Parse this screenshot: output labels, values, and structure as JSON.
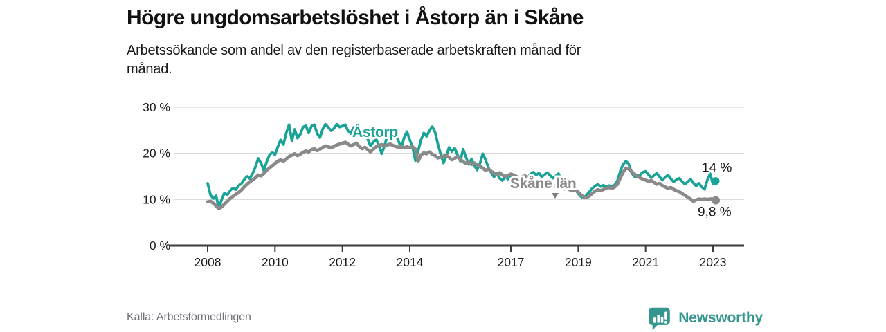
{
  "header": {
    "title": "Högre ungdomsarbetslöshet i Åstorp än i Skåne",
    "subtitle": "Arbetssökande som andel av den registerbaserade arbetskraften månad för månad."
  },
  "footer": {
    "source": "Källa: Arbetsförmedlingen",
    "brand": "Newsworthy"
  },
  "colors": {
    "astorp": "#1aa396",
    "skane": "#8a8a8a",
    "grid": "#dbdbdb",
    "axis": "#3b3b3b",
    "text": "#1a1a1a",
    "logo_teal": "#35968f"
  },
  "chart_data": {
    "type": "line",
    "title": "Högre ungdomsarbetslöshet i Åstorp än i Skåne",
    "subtitle": "Arbetssökande som andel av den registerbaserade arbetskraften månad för månad.",
    "source": "Källa: Arbetsförmedlingen",
    "frequency": "monthly",
    "start": "2008-01",
    "end": "2023-02",
    "ylim": [
      0,
      30
    ],
    "grid": true,
    "legend_position": "inline-labels",
    "y_ticks": [
      {
        "value": 30,
        "label": "30 %"
      },
      {
        "value": 20,
        "label": "20 %"
      },
      {
        "value": 10,
        "label": "10 %"
      },
      {
        "value": 0,
        "label": "0 %"
      }
    ],
    "x_ticks": [
      {
        "year": 2008,
        "label": "2008"
      },
      {
        "year": 2010,
        "label": "2010"
      },
      {
        "year": 2012,
        "label": "2012"
      },
      {
        "year": 2014,
        "label": "2014"
      },
      {
        "year": 2017,
        "label": "2017"
      },
      {
        "year": 2019,
        "label": "2019"
      },
      {
        "year": 2021,
        "label": "2021"
      },
      {
        "year": 2023,
        "label": "2023"
      }
    ],
    "series": [
      {
        "id": "astorp",
        "label": "Åstorp",
        "color": "#1aa396",
        "end_label": "14 %",
        "last_value": 14.0,
        "values": [
          13.5,
          11.0,
          10.2,
          10.8,
          8.0,
          10.0,
          11.4,
          11.0,
          11.9,
          12.5,
          12.1,
          13.0,
          13.4,
          14.3,
          15.0,
          14.5,
          15.6,
          17.0,
          18.9,
          17.9,
          16.3,
          18.1,
          19.6,
          20.2,
          19.7,
          21.4,
          22.9,
          21.9,
          24.4,
          26.2,
          22.7,
          25.2,
          23.3,
          24.1,
          25.7,
          26.0,
          24.4,
          25.9,
          26.2,
          24.3,
          23.4,
          25.3,
          26.3,
          25.6,
          24.9,
          25.4,
          26.3,
          25.7,
          25.9,
          26.2,
          24.9,
          24.3,
          25.6,
          26.0,
          24.5,
          23.5,
          24.3,
          23.1,
          21.6,
          22.4,
          23.1,
          21.7,
          19.9,
          21.6,
          23.9,
          24.6,
          23.3,
          24.1,
          22.6,
          21.2,
          23.4,
          24.7,
          22.9,
          21.3,
          18.4,
          20.6,
          22.9,
          24.4,
          23.7,
          24.9,
          25.8,
          24.6,
          22.0,
          19.8,
          17.9,
          19.4,
          21.3,
          20.4,
          21.1,
          19.7,
          18.3,
          20.9,
          19.2,
          17.6,
          18.8,
          17.3,
          16.4,
          17.8,
          19.9,
          18.6,
          16.9,
          15.8,
          14.9,
          15.7,
          14.6,
          14.1,
          15.0,
          14.4,
          14.8,
          15.3,
          14.2,
          13.6,
          14.6,
          15.2,
          14.7,
          15.5,
          15.9,
          15.3,
          15.7,
          14.9,
          15.4,
          15.8,
          15.2,
          14.6,
          15.1,
          15.6,
          14.3,
          13.4,
          12.9,
          13.3,
          12.6,
          12.1,
          11.3,
          10.6,
          10.3,
          11.0,
          11.7,
          12.4,
          12.9,
          13.3,
          12.8,
          13.1,
          12.7,
          13.0,
          12.8,
          13.2,
          14.1,
          16.2,
          17.6,
          18.3,
          17.7,
          15.8,
          15.0,
          14.9,
          15.3,
          15.9,
          16.1,
          15.4,
          14.7,
          15.2,
          15.7,
          14.9,
          14.2,
          14.8,
          15.3,
          14.5,
          13.8,
          14.3,
          14.6,
          13.9,
          13.3,
          13.8,
          14.4,
          13.6,
          12.9,
          13.5,
          12.7,
          12.2,
          14.2,
          15.6,
          13.4,
          14.0
        ]
      },
      {
        "id": "skane-lan",
        "label": "Skåne län",
        "color": "#8a8a8a",
        "end_label": "9,8 %",
        "last_value": 9.8,
        "values": [
          9.5,
          9.6,
          9.2,
          8.6,
          8.0,
          8.4,
          9.0,
          9.6,
          10.2,
          10.7,
          11.1,
          11.5,
          12.0,
          12.7,
          13.3,
          13.8,
          14.2,
          14.7,
          15.3,
          15.1,
          15.6,
          16.3,
          16.8,
          17.3,
          17.8,
          18.3,
          18.6,
          18.3,
          18.8,
          19.3,
          19.6,
          19.9,
          19.5,
          19.8,
          20.2,
          20.5,
          20.3,
          20.8,
          21.0,
          20.6,
          20.9,
          21.3,
          21.6,
          21.4,
          21.2,
          21.5,
          21.8,
          22.0,
          22.2,
          22.4,
          22.0,
          21.6,
          21.9,
          22.2,
          21.5,
          21.0,
          21.3,
          20.8,
          20.3,
          20.9,
          21.4,
          21.7,
          21.9,
          21.6,
          21.8,
          22.0,
          21.7,
          21.5,
          21.3,
          21.5,
          21.2,
          21.4,
          21.2,
          21.4,
          20.9,
          18.3,
          19.6,
          20.1,
          19.9,
          20.3,
          19.8,
          19.5,
          19.0,
          19.2,
          19.4,
          19.6,
          19.1,
          18.6,
          18.9,
          19.3,
          18.7,
          18.2,
          17.8,
          18.1,
          17.6,
          17.9,
          17.5,
          17.2,
          16.8,
          16.3,
          16.6,
          16.1,
          15.7,
          15.4,
          15.8,
          15.3,
          15.0,
          15.2,
          15.5,
          15.3,
          15.0,
          14.7,
          14.9,
          15.1,
          14.6,
          14.3,
          14.1,
          13.9,
          14.1,
          13.8,
          13.6,
          13.9,
          13.5,
          13.1,
          12.8,
          13.0,
          12.6,
          12.3,
          12.5,
          12.1,
          11.9,
          12.2,
          11.6,
          11.0,
          10.5,
          10.4,
          10.8,
          11.3,
          11.8,
          12.1,
          11.9,
          12.2,
          12.4,
          12.6,
          12.4,
          12.7,
          13.3,
          14.7,
          15.9,
          16.8,
          16.6,
          16.1,
          15.5,
          15.1,
          14.7,
          14.4,
          14.2,
          13.9,
          14.1,
          13.7,
          13.3,
          13.5,
          13.0,
          12.7,
          12.4,
          12.6,
          12.2,
          11.9,
          11.7,
          11.3,
          10.9,
          10.5,
          10.1,
          9.6,
          9.9,
          10.1,
          10.0,
          10.1,
          10.0,
          10.1,
          10.1,
          9.8
        ]
      }
    ]
  }
}
